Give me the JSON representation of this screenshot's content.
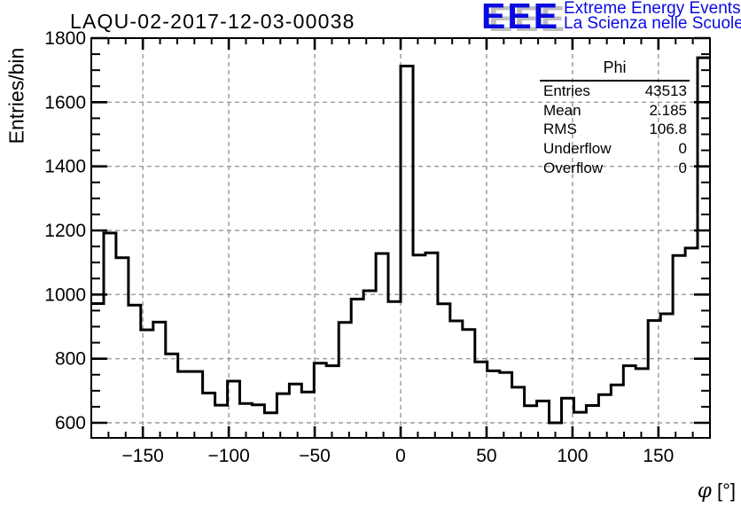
{
  "header": {
    "title": "LAQU-02-2017-12-03-00038"
  },
  "logo": {
    "acronym": "EEE",
    "line1": "Extreme Energy Events",
    "line2": "La Scienza nelle Scuole",
    "color": "#0a0ae0",
    "shadow_color": "#bfbfbf"
  },
  "axes": {
    "ylabel": "Entries/bin",
    "xlabel_symbol": "φ",
    "xlabel_units": "[°]"
  },
  "stats_box": {
    "title": "Phi",
    "rows": [
      {
        "label": "Entries",
        "value": "43513"
      },
      {
        "label": "Mean",
        "value": "2.185"
      },
      {
        "label": "RMS",
        "value": "106.8"
      },
      {
        "label": "Underflow",
        "value": "0"
      },
      {
        "label": "Overflow",
        "value": "0"
      }
    ]
  },
  "chart_data": {
    "type": "bar",
    "subtype": "step-histogram",
    "title": "LAQU-02-2017-12-03-00038",
    "xlabel": "φ [°]",
    "ylabel": "Entries/bin",
    "xlim": [
      -180,
      180
    ],
    "ylim": [
      553,
      1800
    ],
    "bin_start": -180,
    "bin_width": 7.2,
    "values": [
      972,
      1192,
      1115,
      967,
      890,
      914,
      815,
      760,
      760,
      693,
      655,
      730,
      660,
      656,
      631,
      691,
      721,
      696,
      786,
      778,
      913,
      986,
      1012,
      1128,
      978,
      1713,
      1123,
      1130,
      971,
      918,
      891,
      790,
      762,
      757,
      711,
      653,
      668,
      600,
      677,
      633,
      654,
      688,
      718,
      778,
      769,
      919,
      940,
      1122,
      1145,
      1739
    ],
    "xticks": {
      "major": [
        -150,
        -100,
        -50,
        0,
        50,
        100,
        150
      ],
      "labels": [
        "−150",
        "−100",
        "−50",
        "0",
        "50",
        "100",
        "150"
      ],
      "minor_step": 10
    },
    "yticks": {
      "major": [
        600,
        800,
        1000,
        1200,
        1400,
        1600,
        1800
      ],
      "labels": [
        "600",
        "800",
        "1000",
        "1200",
        "1400",
        "1600",
        "1800"
      ],
      "minor_step": 50
    },
    "grid": {
      "show": true,
      "color": "#9a9a9a",
      "dash": "5 4"
    },
    "legend": "none",
    "line_color": "#000000",
    "line_width": 3
  }
}
